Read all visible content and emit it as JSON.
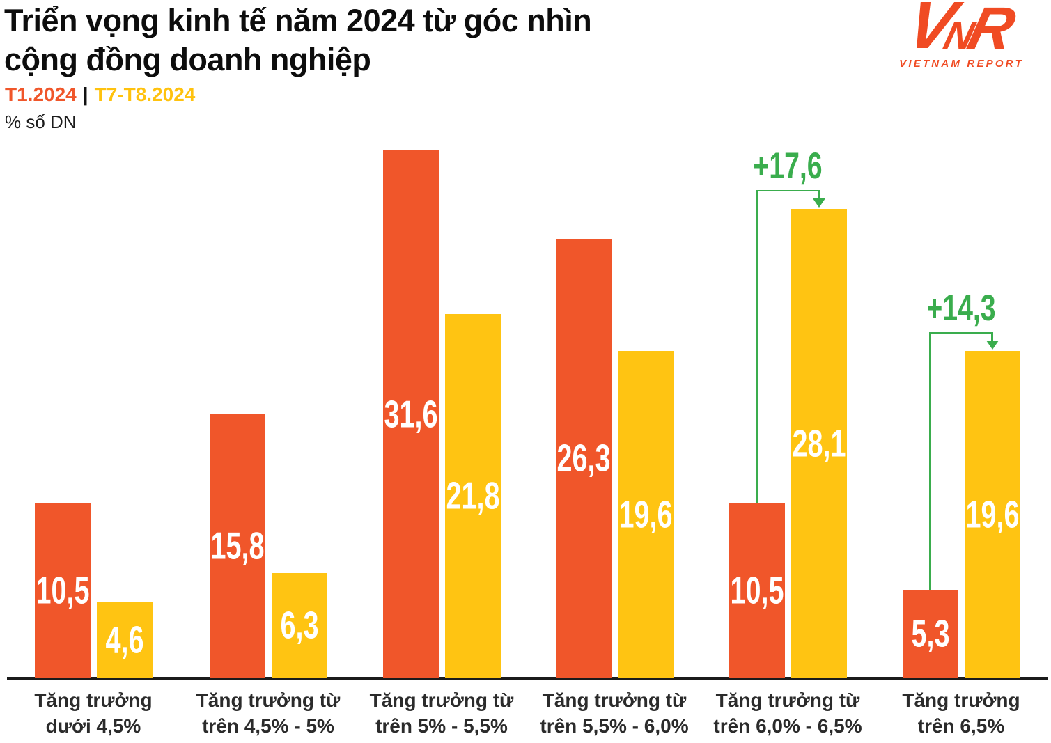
{
  "header": {
    "title_line1": "Triển vọng kinh tế năm 2024 từ góc nhìn",
    "title_line2": "cộng đồng doanh nghiệp",
    "legend": [
      {
        "label": "T1.2024",
        "color": "#F0562A"
      },
      {
        "label": "T7-T8.2024",
        "color": "#FFC20E"
      }
    ],
    "legend_separator": "|",
    "unit_label": "% số DN"
  },
  "logo": {
    "letters": [
      "V",
      "N",
      "R"
    ],
    "subtext": "VIETNAM REPORT",
    "color": "#F04B23"
  },
  "chart_data": {
    "type": "bar",
    "title": "Triển vọng kinh tế năm 2024 từ góc nhìn cộng đồng doanh nghiệp",
    "unit": "% số DN",
    "ylim": [
      0,
      32
    ],
    "grid": false,
    "legend_position": "top-left",
    "categories": [
      [
        "Tăng trưởng",
        "dưới 4,5%"
      ],
      [
        "Tăng trưởng từ",
        "trên 4,5% - 5%"
      ],
      [
        "Tăng trưởng từ",
        "trên 5% - 5,5%"
      ],
      [
        "Tăng trưởng từ",
        "trên 5,5% - 6,0%"
      ],
      [
        "Tăng trưởng từ",
        "trên 6,0% - 6,5%"
      ],
      [
        "Tăng trưởng",
        "trên 6,5%"
      ]
    ],
    "series": [
      {
        "name": "T1.2024",
        "color": "#F0562A",
        "values": [
          10.5,
          15.8,
          31.6,
          26.3,
          10.5,
          5.3
        ],
        "value_labels": [
          "10,5",
          "15,8",
          "31,6",
          "26,3",
          "10,5",
          "5,3"
        ]
      },
      {
        "name": "T7-T8.2024",
        "color": "#FFC412",
        "values": [
          4.6,
          6.3,
          21.8,
          19.6,
          28.1,
          19.6
        ],
        "value_labels": [
          "4,6",
          "6,3",
          "21,8",
          "19,6",
          "28,1",
          "19,6"
        ]
      }
    ],
    "annotation_color": "#3AAD4D",
    "annotations": [
      {
        "category_index": 4,
        "from_series": "T1.2024",
        "to_series": "T7-T8.2024",
        "delta": 17.6,
        "label": "+17,6"
      },
      {
        "category_index": 5,
        "from_series": "T1.2024",
        "to_series": "T7-T8.2024",
        "delta": 14.3,
        "label": "+14,3"
      }
    ],
    "axis_color": "#1b1b1b",
    "value_label_color": "#ffffff",
    "category_label_color": "#2b2b2b"
  }
}
